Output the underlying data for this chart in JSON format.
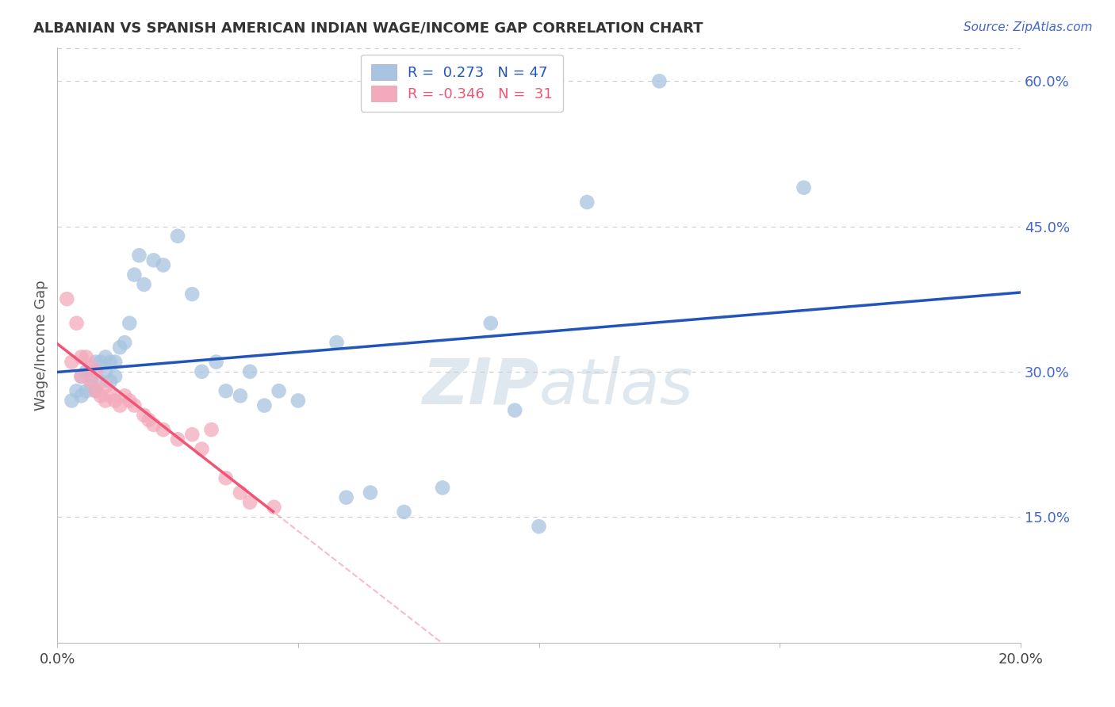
{
  "title": "ALBANIAN VS SPANISH AMERICAN INDIAN WAGE/INCOME GAP CORRELATION CHART",
  "source": "Source: ZipAtlas.com",
  "ylabel": "Wage/Income Gap",
  "xlim": [
    0.0,
    0.2
  ],
  "ylim": [
    0.02,
    0.635
  ],
  "xticks": [
    0.0,
    0.05,
    0.1,
    0.15,
    0.2
  ],
  "yticks_right": [
    0.15,
    0.3,
    0.45,
    0.6
  ],
  "ytick_labels_right": [
    "15.0%",
    "30.0%",
    "45.0%",
    "60.0%"
  ],
  "xtick_labels": [
    "0.0%",
    "",
    "",
    "",
    "20.0%"
  ],
  "r_albanian": 0.273,
  "n_albanian": 47,
  "r_spanish": -0.346,
  "n_spanish": 31,
  "albanian_color": "#A8C4E0",
  "spanish_color": "#F4AABB",
  "albanian_trend_color": "#2255BB",
  "spanish_trend_color": "#EE5577",
  "albanian_x": [
    0.003,
    0.004,
    0.005,
    0.005,
    0.006,
    0.006,
    0.007,
    0.007,
    0.008,
    0.008,
    0.009,
    0.009,
    0.01,
    0.01,
    0.011,
    0.011,
    0.012,
    0.012,
    0.013,
    0.014,
    0.015,
    0.016,
    0.017,
    0.018,
    0.02,
    0.022,
    0.025,
    0.028,
    0.03,
    0.033,
    0.035,
    0.038,
    0.04,
    0.043,
    0.046,
    0.05,
    0.058,
    0.065,
    0.072,
    0.08,
    0.09,
    0.095,
    0.1,
    0.11,
    0.125,
    0.155,
    0.06
  ],
  "albanian_y": [
    0.27,
    0.28,
    0.275,
    0.295,
    0.28,
    0.3,
    0.285,
    0.295,
    0.28,
    0.31,
    0.29,
    0.31,
    0.3,
    0.315,
    0.31,
    0.29,
    0.31,
    0.295,
    0.325,
    0.33,
    0.35,
    0.4,
    0.42,
    0.39,
    0.415,
    0.41,
    0.44,
    0.38,
    0.3,
    0.31,
    0.28,
    0.275,
    0.3,
    0.265,
    0.28,
    0.27,
    0.33,
    0.175,
    0.155,
    0.18,
    0.35,
    0.26,
    0.14,
    0.475,
    0.6,
    0.49,
    0.17
  ],
  "spanish_x": [
    0.002,
    0.003,
    0.004,
    0.005,
    0.005,
    0.006,
    0.007,
    0.007,
    0.008,
    0.008,
    0.009,
    0.01,
    0.01,
    0.011,
    0.012,
    0.013,
    0.014,
    0.015,
    0.016,
    0.018,
    0.019,
    0.02,
    0.022,
    0.025,
    0.028,
    0.03,
    0.032,
    0.035,
    0.038,
    0.04,
    0.045
  ],
  "spanish_y": [
    0.375,
    0.31,
    0.35,
    0.315,
    0.295,
    0.315,
    0.305,
    0.29,
    0.3,
    0.28,
    0.275,
    0.285,
    0.27,
    0.275,
    0.27,
    0.265,
    0.275,
    0.27,
    0.265,
    0.255,
    0.25,
    0.245,
    0.24,
    0.23,
    0.235,
    0.22,
    0.24,
    0.19,
    0.175,
    0.165,
    0.16
  ],
  "watermark_zip": "ZIP",
  "watermark_atlas": "atlas",
  "background_color": "#FFFFFF",
  "grid_color": "#CCCCCC",
  "legend_labels": [
    "R =  0.273   N = 47",
    "R = -0.346   N =  31"
  ],
  "legend_colors": [
    "#2255BB",
    "#EE5577"
  ]
}
